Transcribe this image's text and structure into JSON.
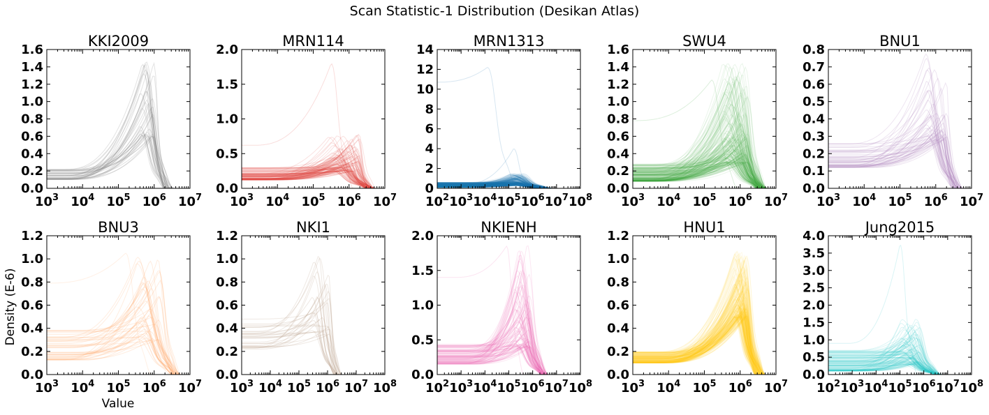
{
  "figure": {
    "title": "Scan Statistic-1 Distribution (Desikan Atlas)",
    "xlabel": "Value",
    "ylabel": "Density (E-6)"
  },
  "chart_data": [
    {
      "type": "line",
      "title": "KKI2009",
      "color": "#808080",
      "xscale": "log",
      "xlim_exp": [
        3,
        7
      ],
      "ylim": [
        0,
        1.6
      ],
      "yticks": [
        "0.0",
        "0.2",
        "0.4",
        "0.6",
        "0.8",
        "1.0",
        "1.2",
        "1.4",
        "1.6"
      ],
      "n_curves": 40,
      "base_y": [
        0.1,
        0.22
      ],
      "peak_x_exp": [
        5.6,
        6.0
      ],
      "peak_y": [
        0.6,
        1.47
      ],
      "end_x_exp": 6.4
    },
    {
      "type": "line",
      "title": "MRN114",
      "color": "#e0423f",
      "xscale": "log",
      "xlim_exp": [
        3,
        7
      ],
      "ylim": [
        0,
        2.0
      ],
      "yticks": [
        "0.0",
        "0.5",
        "1.0",
        "1.5",
        "2.0"
      ],
      "n_curves": 110,
      "base_y": [
        0.12,
        0.3
      ],
      "peak_x_exp": [
        5.4,
        6.3
      ],
      "peak_y": [
        0.25,
        0.8
      ],
      "end_x_exp": 6.6,
      "outliers": [
        {
          "base": 0.62,
          "peak_x_exp": 5.5,
          "peak_y": 1.8,
          "end_x_exp": 6.1
        }
      ]
    },
    {
      "type": "line",
      "title": "MRN1313",
      "color": "#1f77b4",
      "xscale": "log",
      "xlim_exp": [
        2,
        8
      ],
      "ylim": [
        0,
        14
      ],
      "yticks": [
        "0",
        "2",
        "4",
        "6",
        "8",
        "10",
        "12",
        "14"
      ],
      "n_curves": 300,
      "base_y": [
        0.1,
        0.6
      ],
      "peak_x_exp": [
        5.0,
        5.6
      ],
      "peak_y": [
        0.3,
        1.5
      ],
      "end_x_exp": 6.7,
      "outliers": [
        {
          "base": 10.7,
          "peak_x_exp": 4.1,
          "peak_y": 12.2,
          "end_x_exp": 5.3
        },
        {
          "base": 0.4,
          "peak_x_exp": 5.2,
          "peak_y": 4.0,
          "end_x_exp": 5.9
        }
      ]
    },
    {
      "type": "line",
      "title": "SWU4",
      "color": "#3da63d",
      "xscale": "log",
      "xlim_exp": [
        3,
        7
      ],
      "ylim": [
        0,
        1.6
      ],
      "yticks": [
        "0.0",
        "0.2",
        "0.4",
        "0.6",
        "0.8",
        "1.0",
        "1.2",
        "1.4",
        "1.6"
      ],
      "n_curves": 220,
      "base_y": [
        0.08,
        0.28
      ],
      "peak_x_exp": [
        5.5,
        6.2
      ],
      "peak_y": [
        0.3,
        1.45
      ],
      "end_x_exp": 6.6,
      "outliers": [
        {
          "base": 0.78,
          "peak_x_exp": 5.2,
          "peak_y": 1.25,
          "end_x_exp": 5.9
        }
      ]
    },
    {
      "type": "line",
      "title": "BNU1",
      "color": "#b388c0",
      "xscale": "log",
      "xlim_exp": [
        3,
        7
      ],
      "ylim": [
        0,
        0.8
      ],
      "yticks": [
        "0.0",
        "0.1",
        "0.2",
        "0.3",
        "0.4",
        "0.5",
        "0.6",
        "0.7",
        "0.8"
      ],
      "n_curves": 55,
      "base_y": [
        0.12,
        0.26
      ],
      "peak_x_exp": [
        5.7,
        6.3
      ],
      "peak_y": [
        0.28,
        0.78
      ],
      "end_x_exp": 6.6
    },
    {
      "type": "line",
      "title": "BNU3",
      "color": "#ffae70",
      "xscale": "log",
      "xlim_exp": [
        3,
        7
      ],
      "ylim": [
        0,
        1.2
      ],
      "yticks": [
        "0.0",
        "0.2",
        "0.4",
        "0.6",
        "0.8",
        "1.0",
        "1.2"
      ],
      "n_curves": 45,
      "base_y": [
        0.12,
        0.42
      ],
      "peak_x_exp": [
        5.5,
        6.2
      ],
      "peak_y": [
        0.3,
        1.02
      ],
      "end_x_exp": 6.6,
      "outliers": [
        {
          "base": 0.79,
          "peak_x_exp": 5.2,
          "peak_y": 1.05,
          "end_x_exp": 5.9
        }
      ]
    },
    {
      "type": "line",
      "title": "NKI1",
      "color": "#b89a86",
      "xscale": "log",
      "xlim_exp": [
        3,
        8
      ],
      "ylim": [
        0,
        1.2
      ],
      "yticks": [
        "0.0",
        "0.2",
        "0.4",
        "0.6",
        "0.8",
        "1.0",
        "1.2"
      ],
      "n_curves": 30,
      "base_y": [
        0.22,
        0.48
      ],
      "peak_x_exp": [
        5.4,
        6.1
      ],
      "peak_y": [
        0.35,
        1.05
      ],
      "end_x_exp": 6.35
    },
    {
      "type": "line",
      "title": "NKIENH",
      "color": "#ef6bb3",
      "xscale": "log",
      "xlim_exp": [
        2,
        8
      ],
      "ylim": [
        0,
        2.0
      ],
      "yticks": [
        "0.0",
        "0.5",
        "1.0",
        "1.5",
        "2.0"
      ],
      "n_curves": 100,
      "base_y": [
        0.15,
        0.45
      ],
      "peak_x_exp": [
        5.2,
        5.9
      ],
      "peak_y": [
        0.4,
        1.9
      ],
      "end_x_exp": 6.5,
      "outliers": [
        {
          "base": 1.4,
          "peak_x_exp": 4.9,
          "peak_y": 1.85,
          "end_x_exp": 5.6
        }
      ]
    },
    {
      "type": "line",
      "title": "HNU1",
      "color": "#ffcf1b",
      "xscale": "log",
      "xlim_exp": [
        3,
        7
      ],
      "ylim": [
        0,
        1.2
      ],
      "yticks": [
        "0.0",
        "0.2",
        "0.4",
        "0.6",
        "0.8",
        "1.0",
        "1.2"
      ],
      "n_curves": 240,
      "base_y": [
        0.1,
        0.2
      ],
      "peak_x_exp": [
        5.8,
        6.2
      ],
      "peak_y": [
        0.5,
        1.08
      ],
      "end_x_exp": 6.55
    },
    {
      "type": "line",
      "title": "Jung2015",
      "color": "#2bc4c8",
      "xscale": "log",
      "xlim_exp": [
        2,
        8
      ],
      "ylim": [
        0,
        4.0
      ],
      "yticks": [
        "0.0",
        "0.5",
        "1.0",
        "1.5",
        "2.0",
        "2.5",
        "3.0",
        "3.5",
        "4.0"
      ],
      "n_curves": 110,
      "base_y": [
        0.1,
        0.7
      ],
      "peak_x_exp": [
        5.0,
        5.8
      ],
      "peak_y": [
        0.3,
        1.6
      ],
      "end_x_exp": 6.6,
      "outliers": [
        {
          "base": 0.9,
          "peak_x_exp": 5.0,
          "peak_y": 3.75,
          "end_x_exp": 5.7
        }
      ]
    }
  ]
}
